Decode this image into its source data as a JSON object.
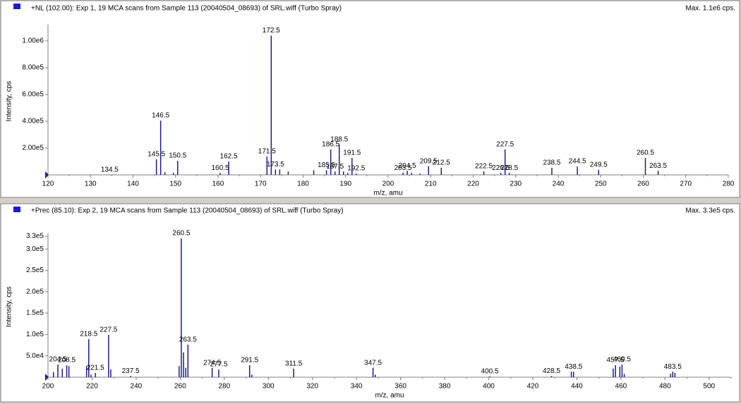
{
  "chart_data": [
    {
      "type": "bar",
      "title": "+NL (102.00): Exp 1, 19 MCA scans from Sample 113 (20040504_08693) of SRL.wiff (Turbo Spray)",
      "max_label": "Max. 1.1e6 cps.",
      "x_label": "m/z, amu",
      "y_label": "Intensity, cps",
      "color": "#1c1c8a",
      "xlim": [
        120,
        280
      ],
      "xticks": [
        120,
        130,
        140,
        150,
        160,
        170,
        180,
        190,
        200,
        210,
        220,
        230,
        240,
        250,
        260,
        270,
        280
      ],
      "ylim": [
        0,
        1100000
      ],
      "yticks": [
        {
          "value": 200000,
          "label": "2.00e5"
        },
        {
          "value": 400000,
          "label": "4.00e5"
        },
        {
          "value": 600000,
          "label": "6.00e5"
        },
        {
          "value": 800000,
          "label": "8.00e5"
        },
        {
          "value": 1000000,
          "label": "1.00e6"
        }
      ],
      "x": [
        134.5,
        145.5,
        146.5,
        150.5,
        160.5,
        162.5,
        171.5,
        172.5,
        173.5,
        185.5,
        186.5,
        187.5,
        188.5,
        191.5,
        192.5,
        203.5,
        204.5,
        209.5,
        212.5,
        222.5,
        226.5,
        227.5,
        228.5,
        238.5,
        244.5,
        249.5,
        260.5,
        263.5
      ],
      "values": [
        2000,
        116000,
        405000,
        105000,
        15000,
        100000,
        137000,
        1040000,
        40000,
        35000,
        190000,
        25000,
        226000,
        126000,
        10000,
        15000,
        30000,
        63000,
        53000,
        26000,
        15000,
        190000,
        15000,
        53000,
        63000,
        37000,
        126000,
        30000
      ],
      "unlabeled_x": [
        147.5,
        149.5,
        174.5,
        176.5,
        182.5,
        189.5,
        190.5,
        205.5,
        207.5
      ],
      "unlabeled_values": [
        20000,
        15000,
        40000,
        25000,
        35000,
        25000,
        15000,
        15000,
        10000
      ]
    },
    {
      "type": "bar",
      "title": "+Prec (85.10): Exp 2, 19 MCA scans from Sample 113 (20040504_08693) of SRL.wiff (Turbo Spray)",
      "max_label": "Max. 3.3e5 cps.",
      "x_label": "m/z, amu",
      "y_label": "Intensity, cps",
      "color": "#1c1c8a",
      "xlim": [
        200,
        510
      ],
      "xticks": [
        200,
        220,
        240,
        260,
        280,
        300,
        320,
        340,
        360,
        380,
        400,
        420,
        440,
        460,
        480,
        500
      ],
      "ylim": [
        0,
        330000
      ],
      "yticks": [
        {
          "value": 50000,
          "label": "5.0e4"
        },
        {
          "value": 100000,
          "label": "1.0e5"
        },
        {
          "value": 150000,
          "label": "1.5e5"
        },
        {
          "value": 200000,
          "label": "2.0e5"
        },
        {
          "value": 250000,
          "label": "2.5e5"
        },
        {
          "value": 300000,
          "label": "3.0e5"
        },
        {
          "value": 330000,
          "label": "3.3e5"
        }
      ],
      "x": [
        204.5,
        208.5,
        218.5,
        221.5,
        227.5,
        237.5,
        260.5,
        263.5,
        274.5,
        277.5,
        291.5,
        311.5,
        347.5,
        400.5,
        428.5,
        438.5,
        457.5,
        460.5,
        483.5
      ],
      "values": [
        30000,
        28000,
        89000,
        10000,
        99000,
        3000,
        325000,
        76000,
        22000,
        18000,
        28000,
        20000,
        22000,
        2000,
        3000,
        13000,
        28000,
        30000,
        13000
      ],
      "unlabeled_x": [
        202.5,
        206.5,
        209.5,
        217.5,
        219.5,
        228.5,
        259.5,
        261.5,
        262.5,
        292.5,
        348.5,
        437.5,
        456.5,
        459.5,
        461.5,
        482.5,
        484.5
      ],
      "unlabeled_values": [
        12000,
        20000,
        26000,
        26000,
        6000,
        18000,
        26000,
        58000,
        22000,
        6000,
        6000,
        13000,
        20000,
        25000,
        8000,
        8000,
        10000
      ]
    }
  ]
}
